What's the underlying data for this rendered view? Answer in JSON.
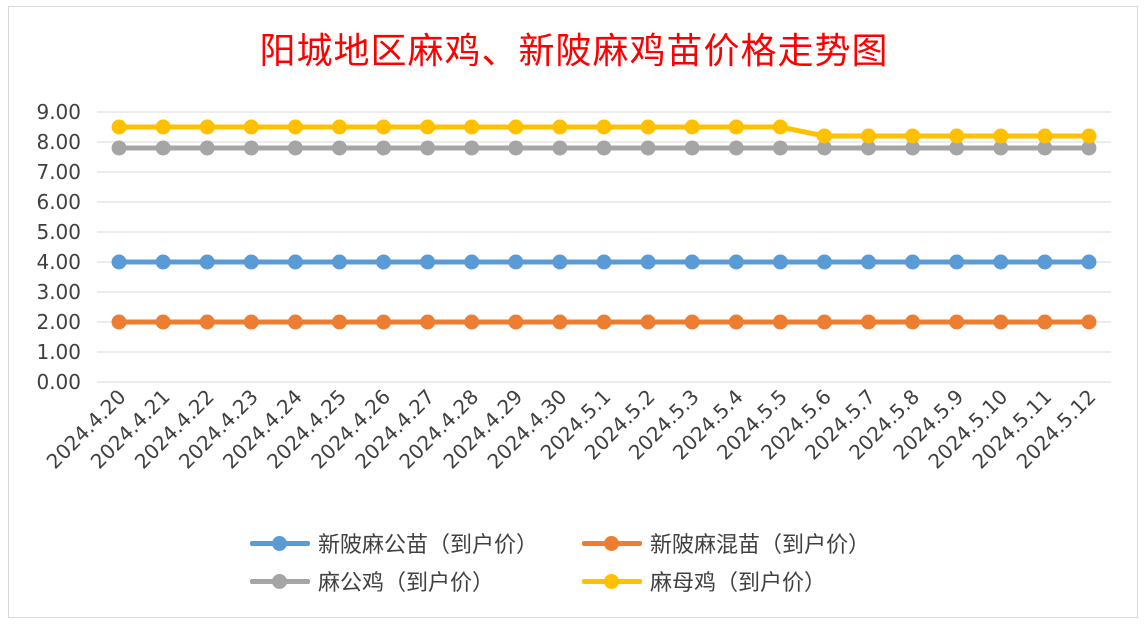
{
  "title": "阳城地区麻鸡、新陂麻鸡苗价格走势图",
  "chart_data": {
    "type": "line",
    "title": "阳城地区麻鸡、新陂麻鸡苗价格走势图",
    "xlabel": "",
    "ylabel": "",
    "ylim": [
      0,
      9
    ],
    "yticks": [
      "0.00",
      "1.00",
      "2.00",
      "3.00",
      "4.00",
      "5.00",
      "6.00",
      "7.00",
      "8.00",
      "9.00"
    ],
    "grid": true,
    "legend_position": "bottom",
    "categories": [
      "2024.4.20",
      "2024.4.21",
      "2024.4.22",
      "2024.4.23",
      "2024.4.24",
      "2024.4.25",
      "2024.4.26",
      "2024.4.27",
      "2024.4.28",
      "2024.4.29",
      "2024.4.30",
      "2024.5.1",
      "2024.5.2",
      "2024.5.3",
      "2024.5.4",
      "2024.5.5",
      "2024.5.6",
      "2024.5.7",
      "2024.5.8",
      "2024.5.9",
      "2024.5.10",
      "2024.5.11",
      "2024.5.12"
    ],
    "series": [
      {
        "name": "新陂麻公苗（到户价）",
        "color": "#5b9bd5",
        "values": [
          4.0,
          4.0,
          4.0,
          4.0,
          4.0,
          4.0,
          4.0,
          4.0,
          4.0,
          4.0,
          4.0,
          4.0,
          4.0,
          4.0,
          4.0,
          4.0,
          4.0,
          4.0,
          4.0,
          4.0,
          4.0,
          4.0,
          4.0
        ]
      },
      {
        "name": "新陂麻混苗（到户价）",
        "color": "#ed7d31",
        "values": [
          2.0,
          2.0,
          2.0,
          2.0,
          2.0,
          2.0,
          2.0,
          2.0,
          2.0,
          2.0,
          2.0,
          2.0,
          2.0,
          2.0,
          2.0,
          2.0,
          2.0,
          2.0,
          2.0,
          2.0,
          2.0,
          2.0,
          2.0
        ]
      },
      {
        "name": "麻公鸡（到户价）",
        "color": "#a5a5a5",
        "values": [
          7.8,
          7.8,
          7.8,
          7.8,
          7.8,
          7.8,
          7.8,
          7.8,
          7.8,
          7.8,
          7.8,
          7.8,
          7.8,
          7.8,
          7.8,
          7.8,
          7.8,
          7.8,
          7.8,
          7.8,
          7.8,
          7.8,
          7.8
        ]
      },
      {
        "name": "麻母鸡（到户价）",
        "color": "#ffc000",
        "values": [
          8.5,
          8.5,
          8.5,
          8.5,
          8.5,
          8.5,
          8.5,
          8.5,
          8.5,
          8.5,
          8.5,
          8.5,
          8.5,
          8.5,
          8.5,
          8.5,
          8.2,
          8.2,
          8.2,
          8.2,
          8.2,
          8.2,
          8.2
        ]
      }
    ]
  }
}
